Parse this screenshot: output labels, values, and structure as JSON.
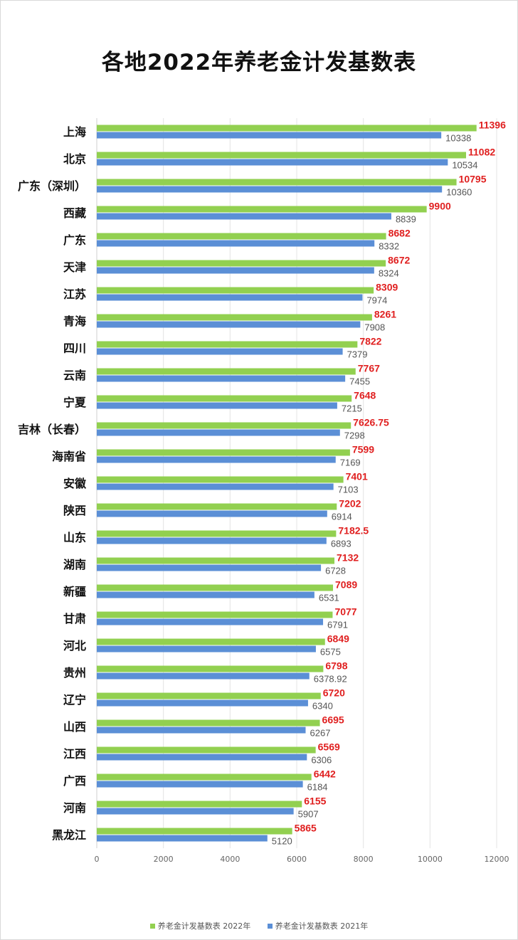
{
  "chart_data": {
    "type": "bar",
    "orientation": "horizontal",
    "title": "各地2022年养老金计发基数表",
    "categories": [
      "上海",
      "北京",
      "广东（深圳）",
      "西藏",
      "广东",
      "天津",
      "江苏",
      "青海",
      "四川",
      "云南",
      "宁夏",
      "吉林（长春）",
      "海南省",
      "安徽",
      "陕西",
      "山东",
      "湖南",
      "新疆",
      "甘肃",
      "河北",
      "贵州",
      "辽宁",
      "山西",
      "江西",
      "广西",
      "河南",
      "黑龙江"
    ],
    "series": [
      {
        "name": "养老金计发基数表 2022年",
        "color": "#92d050",
        "label_color": "#e02020",
        "values": [
          11396,
          11082,
          10795,
          9900,
          8682,
          8672,
          8309,
          8261,
          7822,
          7767,
          7648,
          7626.75,
          7599,
          7401,
          7202,
          7182.5,
          7132,
          7089,
          7077,
          6849,
          6798,
          6720,
          6695,
          6569,
          6442,
          6155,
          5865
        ],
        "labels": [
          "11396",
          "11082",
          "10795",
          "9900",
          "8682",
          "8672",
          "8309",
          "8261",
          "7822",
          "7767",
          "7648",
          "7626.75",
          "7599",
          "7401",
          "7202",
          "7182.5",
          "7132",
          "7089",
          "7077",
          "6849",
          "6798",
          "6720",
          "6695",
          "6569",
          "6442",
          "6155",
          "5865"
        ]
      },
      {
        "name": "养老金计发基数表 2021年",
        "color": "#5b8fd6",
        "label_color": "#555555",
        "values": [
          10338,
          10534,
          10360,
          8839,
          8332,
          8324,
          7974,
          7908,
          7379,
          7455,
          7215,
          7298,
          7169,
          7103,
          6914,
          6893,
          6728,
          6531,
          6791,
          6575,
          6378.92,
          6340,
          6267,
          6306,
          6184,
          5907,
          5120
        ],
        "labels": [
          "10338",
          "10534",
          "10360",
          "8839",
          "8332",
          "8324",
          "7974",
          "7908",
          "7379",
          "7455",
          "7215",
          "7298",
          "7169",
          "7103",
          "6914",
          "6893",
          "6728",
          "6531",
          "6791",
          "6575",
          "6378.92",
          "6340",
          "6267",
          "6306",
          "6184",
          "5907",
          "5120"
        ]
      }
    ],
    "xlim": [
      0,
      12000
    ],
    "xticks": [
      "0",
      "2000",
      "4000",
      "6000",
      "8000",
      "10000",
      "12000"
    ],
    "grid": true,
    "legend": "bottom"
  }
}
